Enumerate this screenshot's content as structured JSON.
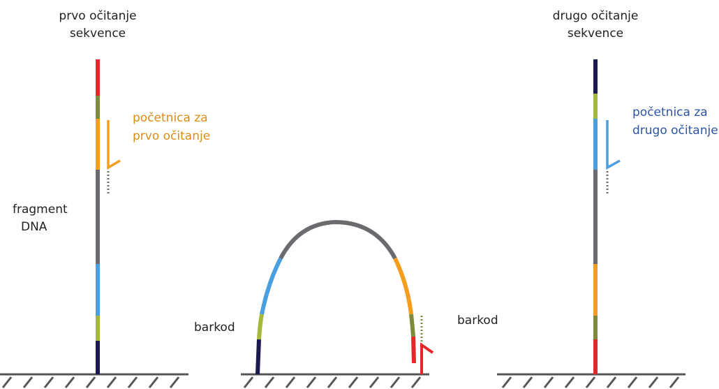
{
  "labels": {
    "first_read_line1": "prvo očitanje",
    "first_read_line2": "sekvence",
    "second_read_line1": "drugo očitanje",
    "second_read_line2": "sekvence",
    "primer1_line1": "početnica za",
    "primer1_line2": "prvo očitanje",
    "primer2_line1": "početnica za",
    "primer2_line2": "drugo očitanje",
    "fragment_line1": "fragment",
    "fragment_line2": "DNA",
    "barcode_left": "barkod",
    "barcode_right": "barkod"
  },
  "colors": {
    "red": "#e8262a",
    "olive": "#7f8a3c",
    "orange": "#f59d1f",
    "gray": "#6b6b6f",
    "blue": "#4a9fe0",
    "yellowgreen": "#a5b83a",
    "navy": "#1a1a4e",
    "primer1_text": "#d98d17",
    "primer2_text": "#2e54a3",
    "dots": "#6f6f6f",
    "ground": "#555555"
  }
}
